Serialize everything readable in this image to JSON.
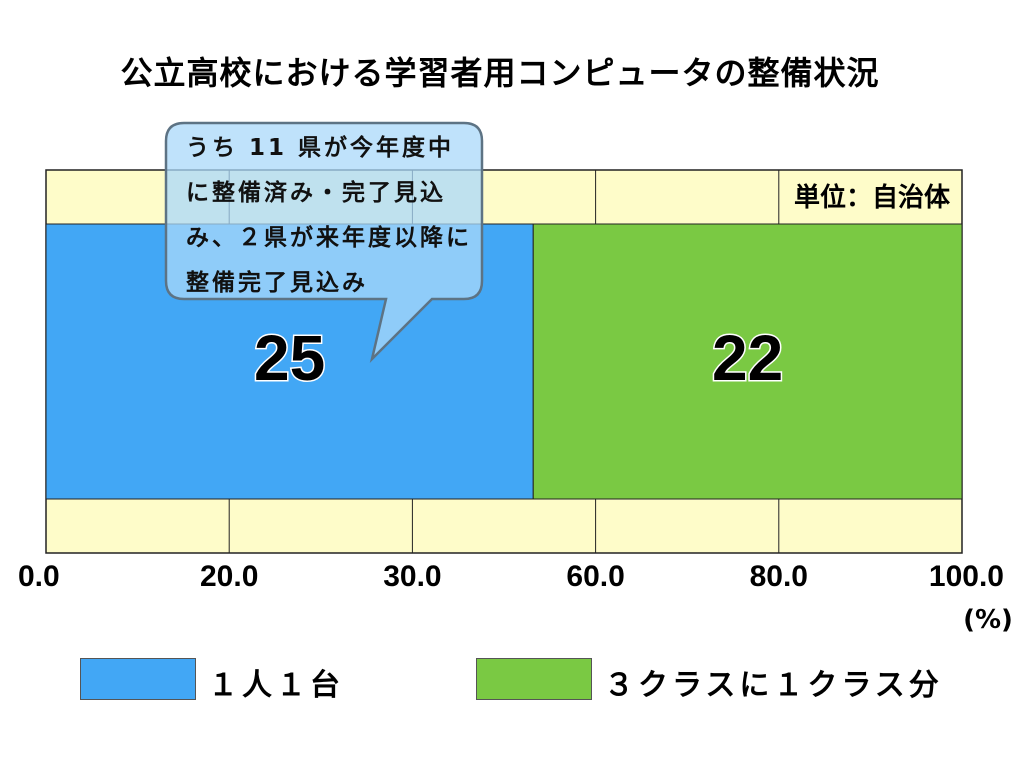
{
  "chart_data": {
    "type": "bar",
    "orientation": "horizontal-stacked",
    "title": "公立高校における学習者用コンピュータの整備状況",
    "unit_note": "単位：自治体",
    "x_tick_labels": [
      "0.0",
      "20.0",
      "30.0",
      "60.0",
      "80.0",
      "100.0"
    ],
    "x_unit": "(%)",
    "xlim": [
      0,
      100
    ],
    "grid": true,
    "legend_placement": "bottom",
    "series": [
      {
        "name": "１人１台",
        "value": 25,
        "value_label": "25",
        "color": "#42a7f5"
      },
      {
        "name": "３クラスに１クラス分",
        "value": 22,
        "value_label": "22",
        "color": "#7ac943"
      }
    ],
    "background_color": "#fefcc9",
    "callout": "うち 11 県が今年度中に整備済み・完了見込み、２県が来年度以降に整備完了見込み"
  }
}
